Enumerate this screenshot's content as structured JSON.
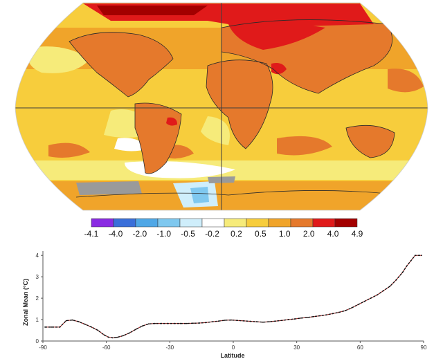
{
  "colors": {
    "warm_4": "#a30000",
    "warm_3": "#e01a1a",
    "warm_2": "#e5792c",
    "warm_1": "#f0a42a",
    "warm_0": "#f7cd3c",
    "pale_yellow": "#f6eb7a",
    "white": "#ffffff",
    "pale_blue": "#cfeefb",
    "blue_1": "#7fc8ef",
    "blue_2": "#4fa7e6",
    "blue_3": "#3a6fd9",
    "purple": "#8a2be2",
    "missing": "#9a9a9a",
    "graticule": "#3d3d3d",
    "coast": "#2a2a2a"
  },
  "legend": {
    "labels": [
      "-4.1",
      "-4.0",
      "-2.0",
      "-1.0",
      "-0.5",
      "-0.2",
      "0.2",
      "0.5",
      "1.0",
      "2.0",
      "4.0",
      "4.9"
    ],
    "swatches": [
      "#8a2be2",
      "#3a6fd9",
      "#4fa7e6",
      "#7fc8ef",
      "#cfeefb",
      "#ffffff",
      "#f6eb7a",
      "#f7cd3c",
      "#f0a42a",
      "#e5792c",
      "#e01a1a",
      "#a30000"
    ]
  },
  "chart_data": {
    "type": "line",
    "xlabel": "Latitude",
    "ylabel": "Zonal Mean (°C)",
    "xlim": [
      -90,
      90
    ],
    "ylim": [
      0,
      4.2
    ],
    "xticks": [
      "-90",
      "-60",
      "-30",
      "0",
      "30",
      "60",
      "90"
    ],
    "yticks": [
      "0",
      "1",
      "2",
      "3",
      "4"
    ],
    "series": [
      {
        "x": [
          -89,
          -86,
          -82,
          -79,
          -76,
          -73,
          -70,
          -67,
          -64,
          -61,
          -59,
          -57,
          -55,
          -52,
          -49,
          -46,
          -43,
          -40,
          -37,
          -34,
          -31,
          -28,
          -25,
          -22,
          -19,
          -16,
          -13,
          -10,
          -7,
          -4,
          -1,
          2,
          5,
          8,
          11,
          14,
          17,
          20,
          23,
          26,
          29,
          32,
          35,
          38,
          41,
          44,
          47,
          50,
          53,
          56,
          59,
          62,
          65,
          68,
          71,
          74,
          77,
          80,
          82,
          84,
          86,
          88,
          89
        ],
        "y": [
          0.65,
          0.65,
          0.65,
          0.95,
          0.98,
          0.9,
          0.78,
          0.65,
          0.5,
          0.28,
          0.18,
          0.15,
          0.17,
          0.25,
          0.38,
          0.55,
          0.7,
          0.8,
          0.82,
          0.82,
          0.82,
          0.82,
          0.82,
          0.82,
          0.83,
          0.84,
          0.86,
          0.9,
          0.93,
          0.97,
          0.98,
          0.96,
          0.94,
          0.92,
          0.9,
          0.88,
          0.9,
          0.93,
          0.96,
          1.0,
          1.03,
          1.07,
          1.1,
          1.14,
          1.18,
          1.22,
          1.28,
          1.34,
          1.42,
          1.55,
          1.7,
          1.85,
          2.0,
          2.15,
          2.35,
          2.55,
          2.85,
          3.2,
          3.5,
          3.75,
          4.0,
          4.0,
          4.0
        ]
      }
    ]
  }
}
